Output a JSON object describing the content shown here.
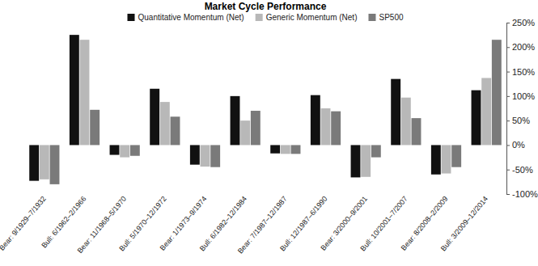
{
  "chart_data": {
    "type": "bar",
    "title": "Market Cycle Performance",
    "categories": [
      "Bear: 9/1929–7/1932",
      "Bull: 6/1962–2/1966",
      "Bear: 11/1968–5/1970",
      "Bull: 5/1970–12/1972",
      "Bear: 1/1973–9/1974",
      "Bull: 6/1982–12/1984",
      "Bear: 7/1987–12/1987",
      "Bull: 12/1987–6/1990",
      "Bear: 3/2000–9/2001",
      "Bull: 10/2001–7/2007",
      "Bear: 8/2008–2/2009",
      "Bull: 3/2009–12/2014"
    ],
    "series": [
      {
        "name": "Quantitative Momentum (Net)",
        "color": "#111111",
        "values": [
          -73,
          225,
          -20,
          115,
          -40,
          100,
          -17,
          102,
          -66,
          135,
          -60,
          112
        ]
      },
      {
        "name": "Generic Momentum (Net)",
        "color": "#b8b8b8",
        "values": [
          -70,
          215,
          -25,
          88,
          -44,
          50,
          -18,
          75,
          -65,
          97,
          -58,
          137
        ]
      },
      {
        "name": "SP500",
        "color": "#7a7a7a",
        "values": [
          -80,
          72,
          -22,
          58,
          -45,
          70,
          -18,
          69,
          -25,
          55,
          -45,
          215
        ]
      }
    ],
    "ylim": [
      -100,
      250
    ],
    "yticks": [
      {
        "value": -100,
        "label": "-100%"
      },
      {
        "value": -50,
        "label": "-50%"
      },
      {
        "value": 0,
        "label": "0%"
      },
      {
        "value": 50,
        "label": "50%"
      },
      {
        "value": 100,
        "label": "100%"
      },
      {
        "value": 150,
        "label": "150%"
      },
      {
        "value": 200,
        "label": "200%"
      },
      {
        "value": 250,
        "label": "250%"
      }
    ],
    "legend": "top",
    "grid": false
  }
}
